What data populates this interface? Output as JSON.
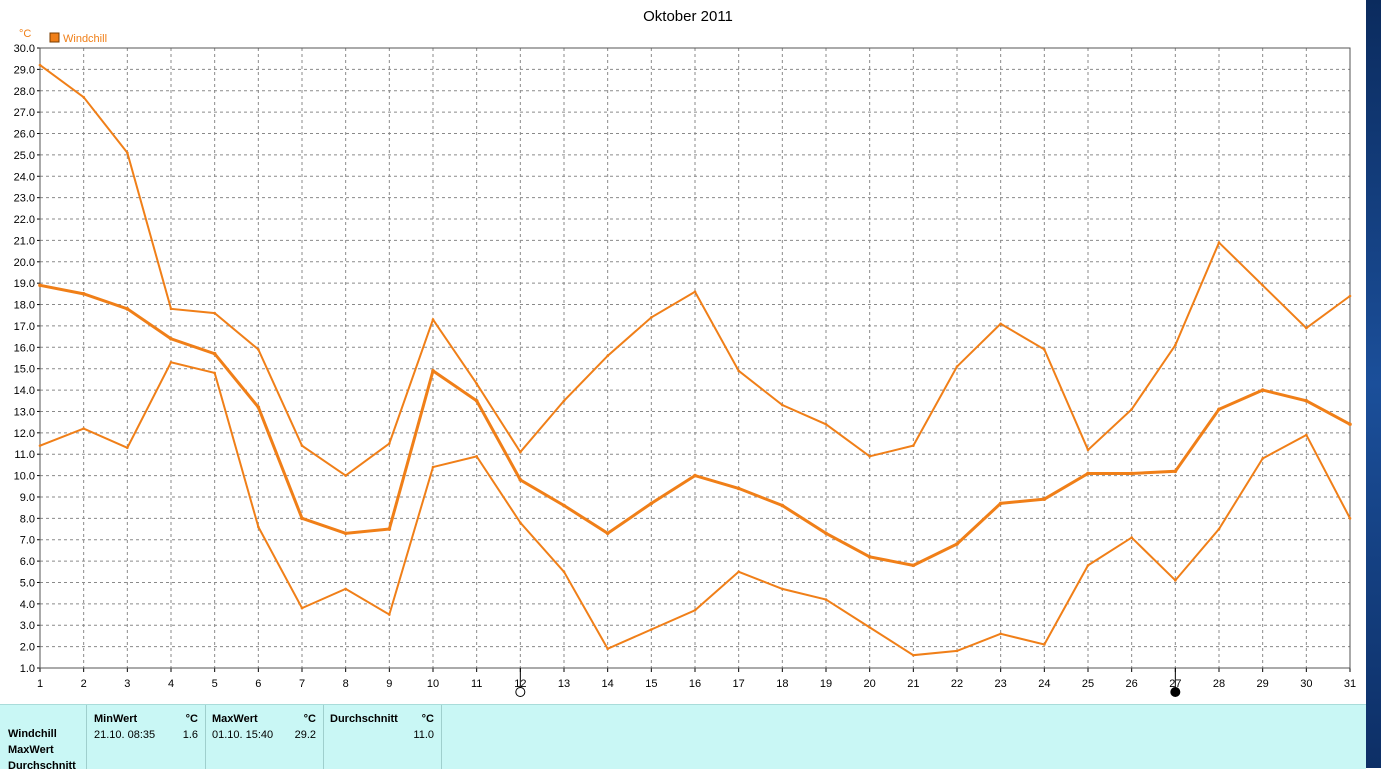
{
  "title": "Oktober 2011",
  "unit_label": "°C",
  "legend": {
    "label": "Windchill",
    "color": "#f07f18"
  },
  "chart_data": {
    "type": "line",
    "title": "Oktober 2011",
    "ylabel": "°C",
    "xlabel": "",
    "x": [
      1,
      2,
      3,
      4,
      5,
      6,
      7,
      8,
      9,
      10,
      11,
      12,
      13,
      14,
      15,
      16,
      17,
      18,
      19,
      20,
      21,
      22,
      23,
      24,
      25,
      26,
      27,
      28,
      29,
      30,
      31
    ],
    "ylim": [
      1.0,
      30.0
    ],
    "ytick_step": 1.0,
    "grid": true,
    "legend_position": "top-left",
    "series": [
      {
        "key": "max",
        "color": "#f07f18",
        "width": 2,
        "values": [
          29.2,
          27.7,
          25.1,
          17.8,
          17.6,
          15.9,
          11.4,
          10.0,
          11.5,
          17.3,
          14.3,
          11.1,
          13.5,
          15.6,
          17.4,
          18.6,
          14.9,
          13.3,
          12.4,
          10.9,
          11.4,
          15.1,
          17.1,
          15.9,
          11.2,
          13.1,
          16.1,
          20.9,
          18.9,
          16.9,
          18.4
        ]
      },
      {
        "key": "avg",
        "color": "#f07f18",
        "width": 3,
        "values": [
          18.9,
          18.5,
          17.8,
          16.4,
          15.7,
          13.2,
          8.0,
          7.3,
          7.5,
          14.9,
          13.5,
          9.8,
          8.6,
          7.3,
          8.7,
          10.0,
          9.4,
          8.6,
          7.3,
          6.2,
          5.8,
          6.8,
          8.7,
          8.9,
          10.1,
          10.1,
          10.2,
          13.1,
          14.0,
          13.5,
          12.4
        ]
      },
      {
        "key": "min",
        "color": "#f07f18",
        "width": 2,
        "values": [
          11.4,
          12.2,
          11.3,
          15.3,
          14.8,
          7.6,
          3.8,
          4.7,
          3.5,
          10.4,
          10.9,
          7.8,
          5.5,
          1.9,
          2.8,
          3.7,
          5.5,
          4.7,
          4.2,
          2.9,
          1.6,
          1.8,
          2.6,
          2.1,
          5.8,
          7.1,
          5.1,
          7.5,
          10.8,
          11.9,
          8.0
        ]
      }
    ],
    "moon_phases": [
      {
        "day": 12,
        "phase": "full-moon"
      },
      {
        "day": 27,
        "phase": "new-moon"
      }
    ]
  },
  "stats": {
    "row_labels": [
      "Windchill",
      "MaxWert",
      "Durchschnitt"
    ],
    "min": {
      "header": "MinWert",
      "unit": "°C",
      "datetime": "21.10.  08:35",
      "value": "1.6"
    },
    "max": {
      "header": "MaxWert",
      "unit": "°C",
      "datetime": "01.10.  15:40",
      "value": "29.2"
    },
    "avg": {
      "header": "Durchschnitt",
      "unit": "°C",
      "value": "11.0"
    }
  }
}
